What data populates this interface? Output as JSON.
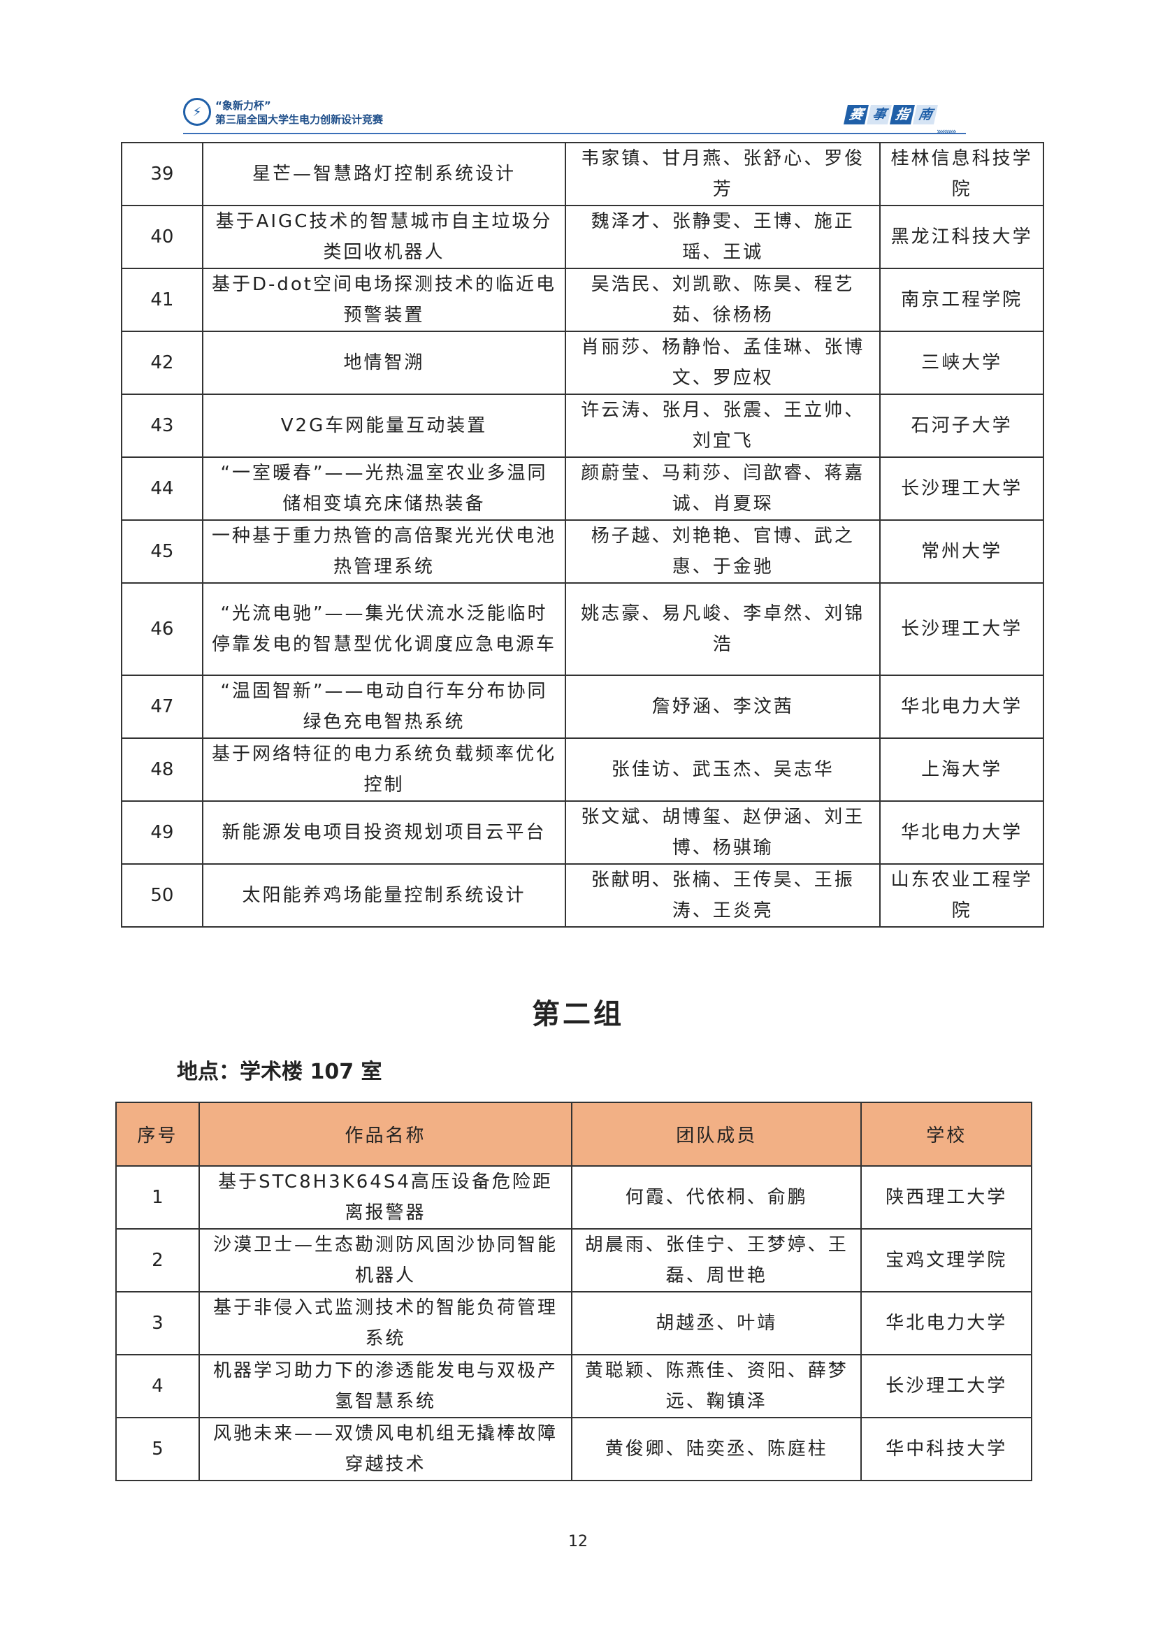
{
  "header": {
    "logo_line1": "“象新力杯”",
    "logo_line2": "第三届全国大学生电力创新设计竞赛",
    "badge": [
      "赛",
      "事",
      "指",
      "南"
    ],
    "chevrons": "»»»»»"
  },
  "table1": {
    "rows": [
      [
        "39",
        "星芒—智慧路灯控制系统设计",
        "韦家镇、甘月燕、张舒心、罗俊芳",
        "桂林信息科技学院"
      ],
      [
        "40",
        "基于AIGC技术的智慧城市自主垃圾分类回收机器人",
        "魏泽才、张静雯、王博、施正瑶、王诚",
        "黑龙江科技大学"
      ],
      [
        "41",
        "基于D-dot空间电场探测技术的临近电预警装置",
        "吴浩民、刘凯歌、陈昊、程艺茹、徐杨杨",
        "南京工程学院"
      ],
      [
        "42",
        "地情智溯",
        "肖丽莎、杨静怡、孟佳琳、张博文、罗应权",
        "三峡大学"
      ],
      [
        "43",
        "V2G车网能量互动装置",
        "许云涛、张月、张震、王立帅、刘宜飞",
        "石河子大学"
      ],
      [
        "44",
        "“一室暖春”——光热温室农业多温同储相变填充床储热装备",
        "颜蔚莹、马莉莎、闫歆睿、蒋嘉诚、肖夏琛",
        "长沙理工大学"
      ],
      [
        "45",
        "一种基于重力热管的高倍聚光光伏电池热管理系统",
        "杨子越、刘艳艳、官博、武之惠、于金驰",
        "常州大学"
      ],
      [
        "46",
        "“光流电驰”——集光伏流水泛能临时停靠发电的智慧型优化调度应急电源车",
        "姚志豪、易凡峻、李卓然、刘锦浩",
        "长沙理工大学"
      ],
      [
        "47",
        "“温固智新”——电动自行车分布协同绿色充电智热系统",
        "詹妤涵、李汶茜",
        "华北电力大学"
      ],
      [
        "48",
        "基于网络特征的电力系统负载频率优化控制",
        "张佳访、武玉杰、吴志华",
        "上海大学"
      ],
      [
        "49",
        "新能源发电项目投资规划项目云平台",
        "张文斌、胡博玺、赵伊涵、刘王博、杨骐瑜",
        "华北电力大学"
      ],
      [
        "50",
        "太阳能养鸡场能量控制系统设计",
        "张献明、张楠、王传昊、王振涛、王炎亮",
        "山东农业工程学院"
      ]
    ]
  },
  "group2": {
    "heading": "第二组",
    "location": "地点：学术楼 107 室"
  },
  "table2": {
    "headers": [
      "序号",
      "作品名称",
      "团队成员",
      "学校"
    ],
    "header_color": "#f2b085",
    "rows": [
      [
        "1",
        "基于STC8H3K64S4高压设备危险距离报警器",
        "何霞、代依桐、俞鹏",
        "陕西理工大学"
      ],
      [
        "2",
        "沙漠卫士—生态勘测防风固沙协同智能机器人",
        "胡晨雨、张佳宁、王梦婷、王磊、周世艳",
        "宝鸡文理学院"
      ],
      [
        "3",
        "基于非侵入式监测技术的智能负荷管理系统",
        "胡越丞、叶靖",
        "华北电力大学"
      ],
      [
        "4",
        "机器学习助力下的渗透能发电与双极产氢智慧系统",
        "黄聪颖、陈燕佳、资阳、薛梦远、鞠镇泽",
        "长沙理工大学"
      ],
      [
        "5",
        "风驰未来——双馈风电机组无撬棒故障穿越技术",
        "黄俊卿、陆奕丞、陈庭柱",
        "华中科技大学"
      ]
    ]
  },
  "page_number": "12"
}
